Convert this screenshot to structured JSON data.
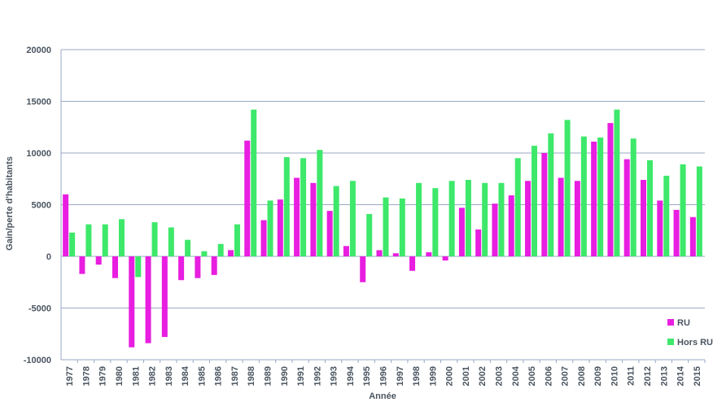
{
  "chart_data": {
    "type": "bar",
    "x_label": "Année",
    "y_label": "Gain/perte d'habitants",
    "categories": [
      "1977",
      "1978",
      "1979",
      "1980",
      "1981",
      "1982",
      "1983",
      "1984",
      "1985",
      "1986",
      "1987",
      "1988",
      "1989",
      "1990",
      "1991",
      "1992",
      "1993",
      "1994",
      "1995",
      "1996",
      "1997",
      "1998",
      "1999",
      "2000",
      "2001",
      "2002",
      "2003",
      "2004",
      "2005",
      "2006",
      "2007",
      "2008",
      "2009",
      "2010",
      "2011",
      "2012",
      "2013",
      "2014",
      "2015"
    ],
    "series": [
      {
        "name": "RU",
        "color": "#e81ee0",
        "values": [
          6000,
          -1700,
          -800,
          -2100,
          -8800,
          -8400,
          -7800,
          -2300,
          -2100,
          -1800,
          600,
          11200,
          3500,
          5500,
          7600,
          7100,
          4400,
          1000,
          -2500,
          600,
          300,
          -1400,
          400,
          -400,
          4700,
          2600,
          5100,
          5900,
          7300,
          10000,
          7600,
          7300,
          11100,
          12900,
          9400,
          7400,
          5400,
          4500,
          3800
        ]
      },
      {
        "name": "Hors RU",
        "color": "#3de86a",
        "values": [
          2300,
          3100,
          3100,
          3600,
          -2000,
          3300,
          2800,
          1600,
          500,
          1200,
          3100,
          14200,
          5400,
          9600,
          9500,
          10300,
          6800,
          7300,
          4100,
          5700,
          5600,
          7100,
          6600,
          7300,
          7400,
          7100,
          7100,
          9500,
          10700,
          11900,
          13200,
          11600,
          11500,
          14200,
          11400,
          9300,
          7800,
          8900,
          8700
        ]
      }
    ],
    "ylim": [
      -10000,
      20000
    ],
    "yticks": [
      -10000,
      -5000,
      0,
      5000,
      10000,
      15000,
      20000
    ],
    "grid": true,
    "legend": "bottom-right"
  }
}
